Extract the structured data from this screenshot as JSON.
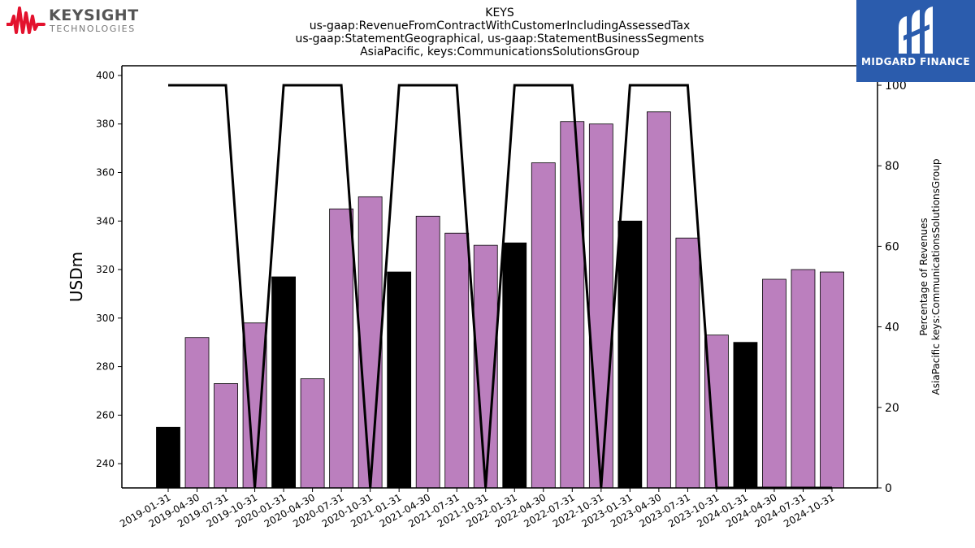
{
  "header": {
    "title_lines": [
      "KEYS",
      "us-gaap:RevenueFromContractWithCustomerIncludingAssessedTax",
      "us-gaap:StatementGeographical, us-gaap:StatementBusinessSegments",
      "AsiaPacific, keys:CommunicationsSolutionsGroup"
    ]
  },
  "logos": {
    "left_brand": "KEYSIGHT",
    "left_sub": "TECHNOLOGIES",
    "right_brand": "MIDGARD FINANCE"
  },
  "colors": {
    "bar_quarter": "#bb7fbe",
    "bar_annual": "#000000",
    "line": "#000000",
    "logo_red": "#e3112d",
    "logo_blue": "#2b5cad"
  },
  "chart_data": {
    "type": "bar",
    "ylabel": "USDm",
    "y2label_lines": [
      "Percentage of Revenues",
      "AsiaPacific keys:CommunicationsSolutionsGroup"
    ],
    "ylim": [
      230,
      404
    ],
    "y2lim": [
      0,
      100
    ],
    "yticks": [
      240,
      260,
      280,
      300,
      320,
      340,
      360,
      380,
      400
    ],
    "y2ticks": [
      0,
      20,
      40,
      60,
      80,
      100
    ],
    "categories": [
      "2019-01-31",
      "2019-04-30",
      "2019-07-31",
      "2019-10-31",
      "2020-01-31",
      "2020-04-30",
      "2020-07-31",
      "2020-10-31",
      "2021-01-31",
      "2021-04-30",
      "2021-07-31",
      "2021-10-31",
      "2022-01-31",
      "2022-04-30",
      "2022-07-31",
      "2022-10-31",
      "2023-01-31",
      "2023-04-30",
      "2023-07-31",
      "2023-10-31",
      "2024-01-31",
      "2024-04-30",
      "2024-07-31",
      "2024-10-31"
    ],
    "values": [
      255,
      292,
      273,
      298,
      317,
      275,
      345,
      350,
      319,
      342,
      335,
      330,
      331,
      364,
      381,
      380,
      340,
      385,
      333,
      293,
      290,
      316,
      320,
      319
    ],
    "annual_flags": [
      1,
      0,
      0,
      0,
      1,
      0,
      0,
      0,
      1,
      0,
      0,
      0,
      1,
      0,
      0,
      0,
      1,
      0,
      0,
      0,
      1,
      0,
      0,
      0
    ],
    "percentage_line": [
      100,
      100,
      100,
      0,
      100,
      100,
      100,
      0,
      100,
      100,
      100,
      0,
      100,
      100,
      100,
      0,
      100,
      100,
      100,
      0,
      0,
      0,
      0,
      0
    ],
    "grid": false
  }
}
